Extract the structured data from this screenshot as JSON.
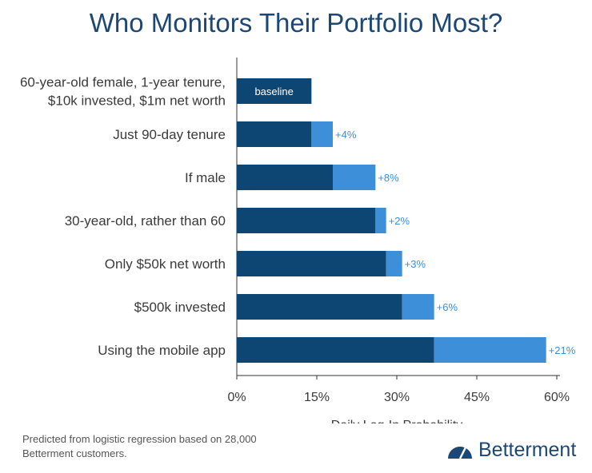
{
  "title": "Who Monitors Their Portfolio Most?",
  "footnote": "Predicted from logistic regression based on 28,000 Betterment customers.",
  "brand": {
    "name": "Betterment",
    "icon": "speedometer-logo-icon"
  },
  "colors": {
    "base": "#0d4573",
    "increment": "#3d8fd9",
    "title": "#1d4775",
    "label": "#3b8ed9"
  },
  "chart_data": {
    "type": "bar",
    "orientation": "horizontal",
    "stacked": true,
    "title": "Who Monitors Their Portfolio Most?",
    "xlabel": "Daily Log-In Probability",
    "ylabel": "",
    "xlim": [
      0,
      60
    ],
    "xticks": [
      "0%",
      "15%",
      "30%",
      "45%",
      "60%"
    ],
    "categories": [
      [
        "60-year-old female, 1-year tenure,",
        "$10k invested, $1m net worth"
      ],
      [
        "Just 90-day tenure"
      ],
      [
        "If male"
      ],
      [
        "30-year-old, rather than 60"
      ],
      [
        "Only $50k net worth"
      ],
      [
        "$500k invested"
      ],
      [
        "Using the mobile app"
      ]
    ],
    "series": [
      {
        "values": [
          14,
          14,
          18,
          26,
          28,
          31,
          37
        ]
      },
      {
        "values": [
          0,
          4,
          8,
          2,
          3,
          6,
          21
        ]
      }
    ],
    "data_labels": [
      "baseline",
      "+4%",
      "+8%",
      "+2%",
      "+3%",
      "+6%",
      "+21%"
    ],
    "grid": false
  }
}
